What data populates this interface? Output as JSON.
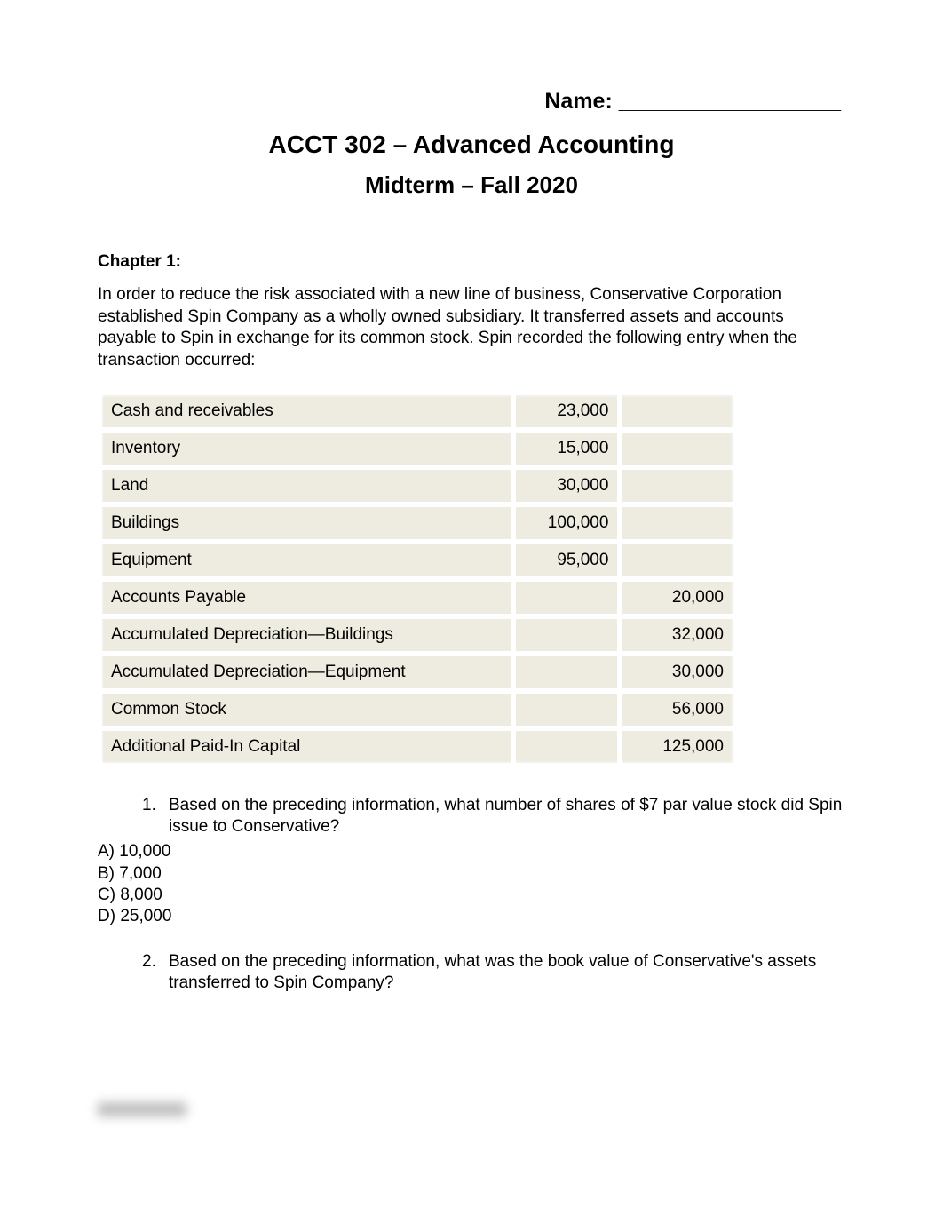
{
  "header": {
    "name_label": "Name: __________________",
    "course_title": "ACCT 302 – Advanced Accounting",
    "exam_title": "Midterm – Fall 2020"
  },
  "chapter": {
    "label": "Chapter 1:",
    "intro": "In order to reduce the risk associated with a new line of business, Conservative Corporation established Spin Company as a wholly owned subsidiary. It transferred assets and accounts payable to Spin in exchange for its common stock. Spin recorded the following entry when the transaction occurred:"
  },
  "journal": {
    "row_bg": "#eeece1",
    "gap_color": "#ffffff",
    "rows": [
      {
        "account": "Cash and receivables",
        "debit": "23,000",
        "credit": ""
      },
      {
        "account": "Inventory",
        "debit": "15,000",
        "credit": ""
      },
      {
        "account": "Land",
        "debit": "30,000",
        "credit": ""
      },
      {
        "account": "Buildings",
        "debit": "100,000",
        "credit": ""
      },
      {
        "account": "Equipment",
        "debit": "95,000",
        "credit": ""
      },
      {
        "account": "Accounts Payable",
        "debit": "",
        "credit": "20,000"
      },
      {
        "account": "Accumulated Depreciation—Buildings",
        "debit": "",
        "credit": "32,000"
      },
      {
        "account": "Accumulated Depreciation—Equipment",
        "debit": "",
        "credit": "30,000"
      },
      {
        "account": "Common Stock",
        "debit": "",
        "credit": "56,000"
      },
      {
        "account": "Additional Paid-In Capital",
        "debit": "",
        "credit": "125,000"
      }
    ]
  },
  "questions": {
    "q1": {
      "number": "1.",
      "text": "Based on the preceding information, what number of shares of $7 par value stock did Spin issue to Conservative?",
      "options": {
        "a": "A) 10,000",
        "b": "B) 7,000",
        "c": "C) 8,000",
        "d": "D) 25,000"
      }
    },
    "q2": {
      "number": "2.",
      "text": "Based on the preceding information, what was the book value of Conservative's assets transferred to Spin Company?"
    }
  }
}
